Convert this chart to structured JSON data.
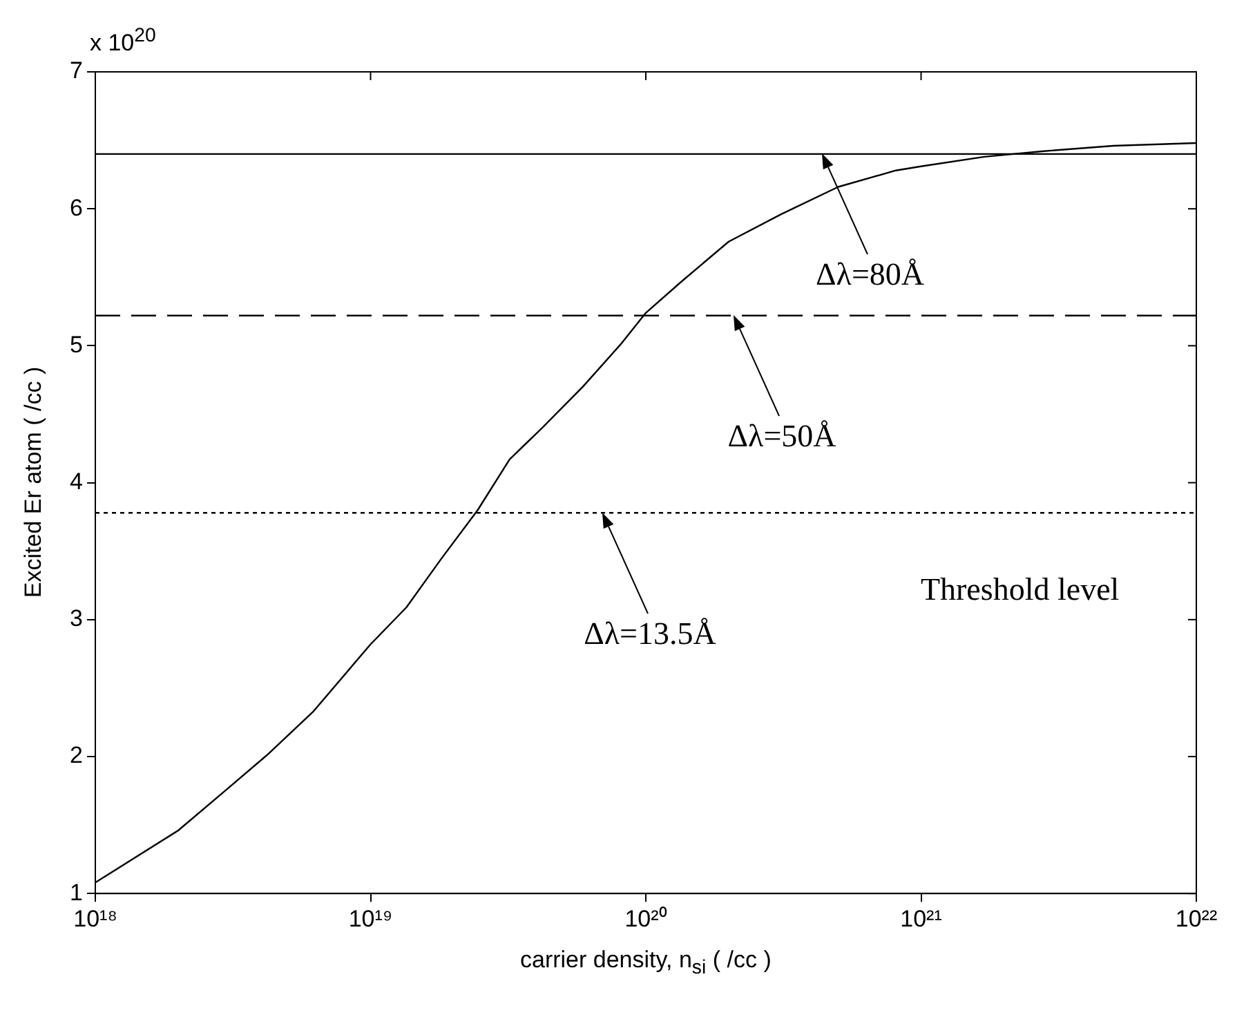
{
  "chart_data": {
    "type": "line",
    "xlabel": "carrier density, n$_{si}$ ( /cc )",
    "ylabel": "Excited Er atom ( /cc )",
    "log": "x",
    "grid": false,
    "legend": false,
    "marker": "none",
    "line_style": "solid",
    "xlim": [
      1e+18,
      1e+22
    ],
    "xticks": [
      {
        "value": 1e+18,
        "label": "10¹⁸"
      },
      {
        "value": 1e+19,
        "label": "10¹⁹"
      },
      {
        "value": 1e+20,
        "label": "10²⁰"
      },
      {
        "value": 1e+21,
        "label": "10²¹"
      },
      {
        "value": 1e+22,
        "label": "10²²"
      }
    ],
    "ylim": [
      1,
      7
    ],
    "yticks": [
      1,
      2,
      3,
      4,
      5,
      6,
      7
    ],
    "series": [
      {
        "color": "#000000",
        "x": [
          1e+18,
          2e+18,
          3e+18,
          4.2e+18,
          6.2e+18,
          1e+19,
          1.35e+19,
          1.8e+19,
          2.45e+19,
          3.2e+19,
          4.2e+19,
          5.9e+19,
          8.1e+19,
          1e+20,
          1.35e+20,
          2e+20,
          3.1e+20,
          5e+20,
          8.1e+20,
          1e+21,
          1.7e+21,
          2.75e+21,
          5e+21,
          1e+22
        ],
        "values": [
          1.08,
          1.46,
          1.76,
          2.01,
          2.33,
          2.82,
          3.09,
          3.44,
          3.8,
          4.17,
          4.4,
          4.7,
          5.01,
          5.24,
          5.47,
          5.76,
          5.96,
          6.16,
          6.28,
          6.31,
          6.38,
          6.42,
          6.46,
          6.48
        ]
      }
    ],
    "ref_lines": [
      {
        "axis": "y",
        "value": 6.4,
        "color": "#000000",
        "line_style": "solid"
      },
      {
        "axis": "y",
        "value": 5.22,
        "color": "#000000",
        "line_style": "dashed"
      },
      {
        "axis": "y",
        "value": 3.78,
        "color": "#000000",
        "line_style": "dotted"
      }
    ],
    "annotations": [
      "x 10$^{20}$",
      "Δλ=80Å",
      "Δλ=50Å",
      "Δλ=13.5Å",
      "Threshold level"
    ]
  }
}
